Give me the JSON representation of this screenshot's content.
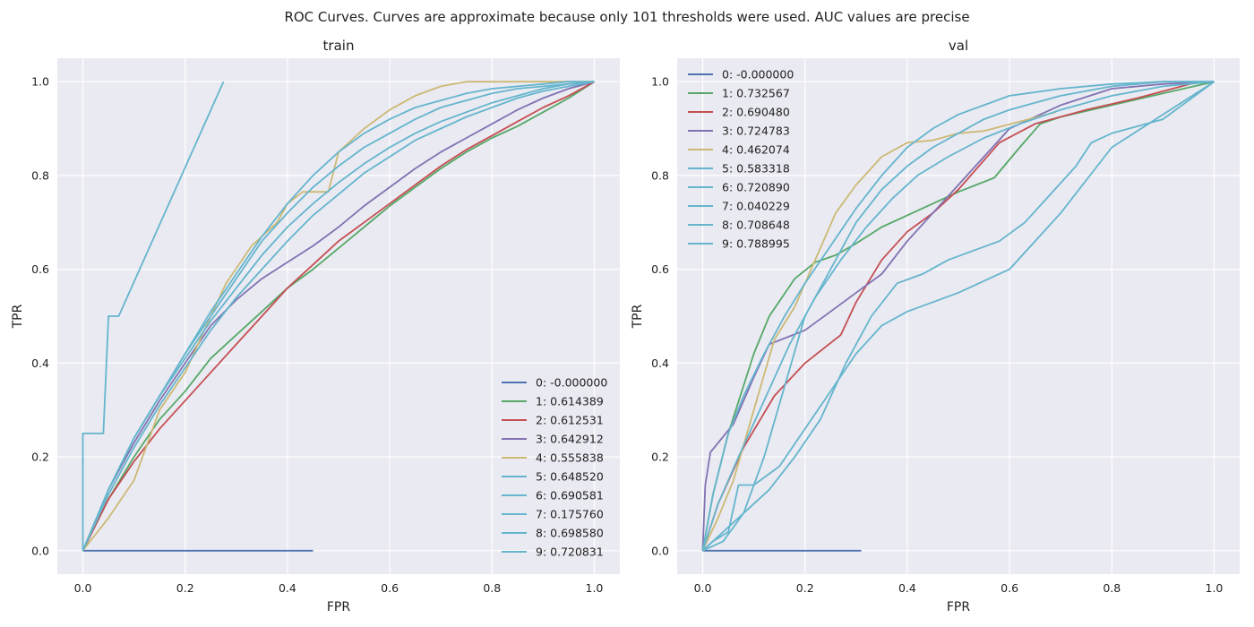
{
  "figure_title": "ROC Curves. Curves are approximate because only 101 thresholds were used. AUC values are precise",
  "chart_data": [
    {
      "type": "line",
      "title": "train",
      "xlabel": "FPR",
      "ylabel": "TPR",
      "xlim": [
        -0.05,
        1.05
      ],
      "ylim": [
        -0.05,
        1.05
      ],
      "xticks": [
        "0.0",
        "0.2",
        "0.4",
        "0.6",
        "0.8",
        "1.0"
      ],
      "yticks": [
        "0.0",
        "0.2",
        "0.4",
        "0.6",
        "0.8",
        "1.0"
      ],
      "grid": true,
      "legend_position": "lower-right",
      "series": [
        {
          "name": "0: -0.000000",
          "color": "#4c72b0",
          "x": [
            0,
            0.45
          ],
          "y": [
            0,
            0
          ]
        },
        {
          "name": "1: 0.614389",
          "color": "#55a868",
          "x": [
            0,
            0.05,
            0.1,
            0.15,
            0.2,
            0.25,
            0.3,
            0.35,
            0.4,
            0.45,
            0.5,
            0.55,
            0.6,
            0.65,
            0.7,
            0.75,
            0.8,
            0.85,
            0.9,
            0.95,
            1.0
          ],
          "y": [
            0,
            0.11,
            0.2,
            0.28,
            0.34,
            0.41,
            0.46,
            0.51,
            0.56,
            0.6,
            0.645,
            0.69,
            0.735,
            0.775,
            0.815,
            0.85,
            0.88,
            0.905,
            0.935,
            0.965,
            1.0
          ]
        },
        {
          "name": "2: 0.612531",
          "color": "#c44e52",
          "x": [
            0,
            0.05,
            0.1,
            0.15,
            0.2,
            0.25,
            0.3,
            0.35,
            0.4,
            0.45,
            0.5,
            0.55,
            0.6,
            0.65,
            0.7,
            0.75,
            0.8,
            0.85,
            0.9,
            0.95,
            1.0
          ],
          "y": [
            0,
            0.11,
            0.19,
            0.26,
            0.32,
            0.38,
            0.44,
            0.5,
            0.56,
            0.61,
            0.66,
            0.7,
            0.74,
            0.78,
            0.82,
            0.855,
            0.885,
            0.915,
            0.945,
            0.97,
            1.0
          ]
        },
        {
          "name": "3: 0.642912",
          "color": "#8172b2",
          "x": [
            0,
            0.05,
            0.1,
            0.15,
            0.2,
            0.25,
            0.3,
            0.35,
            0.4,
            0.45,
            0.5,
            0.55,
            0.6,
            0.65,
            0.7,
            0.75,
            0.8,
            0.85,
            0.9,
            0.95,
            1.0
          ],
          "y": [
            0,
            0.13,
            0.23,
            0.32,
            0.4,
            0.48,
            0.535,
            0.58,
            0.615,
            0.65,
            0.69,
            0.735,
            0.775,
            0.815,
            0.85,
            0.88,
            0.91,
            0.94,
            0.965,
            0.985,
            1.0
          ]
        },
        {
          "name": "4: 0.555838",
          "color": "#ccb974",
          "x": [
            0,
            0.05,
            0.1,
            0.15,
            0.2,
            0.25,
            0.28,
            0.33,
            0.38,
            0.4,
            0.43,
            0.48,
            0.5,
            0.55,
            0.6,
            0.65,
            0.7,
            0.75,
            0.8,
            0.85,
            1.0
          ],
          "y": [
            0,
            0.07,
            0.15,
            0.3,
            0.38,
            0.5,
            0.57,
            0.65,
            0.7,
            0.74,
            0.765,
            0.765,
            0.85,
            0.9,
            0.94,
            0.97,
            0.99,
            1.0,
            1.0,
            1.0,
            1.0
          ]
        },
        {
          "name": "5: 0.648520",
          "color": "#64b5cd",
          "x": [
            0,
            0.05,
            0.1,
            0.15,
            0.2,
            0.25,
            0.3,
            0.35,
            0.4,
            0.45,
            0.5,
            0.55,
            0.6,
            0.65,
            0.7,
            0.75,
            0.8,
            0.85,
            0.9,
            0.95,
            1.0
          ],
          "y": [
            0,
            0.12,
            0.22,
            0.31,
            0.39,
            0.47,
            0.54,
            0.6,
            0.66,
            0.715,
            0.76,
            0.805,
            0.84,
            0.875,
            0.9,
            0.925,
            0.945,
            0.965,
            0.98,
            0.99,
            1.0
          ]
        },
        {
          "name": "6: 0.690581",
          "color": "#64b5cd",
          "x": [
            0,
            0.05,
            0.1,
            0.15,
            0.2,
            0.25,
            0.3,
            0.35,
            0.4,
            0.45,
            0.5,
            0.55,
            0.6,
            0.65,
            0.7,
            0.75,
            0.8,
            0.85,
            0.9,
            0.95,
            1.0
          ],
          "y": [
            0,
            0.13,
            0.24,
            0.33,
            0.41,
            0.49,
            0.56,
            0.63,
            0.69,
            0.74,
            0.785,
            0.825,
            0.86,
            0.89,
            0.915,
            0.935,
            0.955,
            0.97,
            0.985,
            0.995,
            1.0
          ]
        },
        {
          "name": "7: 0.175760",
          "color": "#64b5cd",
          "x": [
            0,
            0.0,
            0.04,
            0.05,
            0.07,
            0.275
          ],
          "y": [
            0,
            0.25,
            0.25,
            0.5,
            0.5,
            1.0
          ]
        },
        {
          "name": "8: 0.698580",
          "color": "#64b5cd",
          "x": [
            0,
            0.05,
            0.1,
            0.15,
            0.2,
            0.25,
            0.3,
            0.35,
            0.4,
            0.45,
            0.5,
            0.55,
            0.6,
            0.65,
            0.7,
            0.75,
            0.8,
            0.85,
            0.9,
            0.95,
            1.0
          ],
          "y": [
            0,
            0.13,
            0.24,
            0.33,
            0.42,
            0.5,
            0.58,
            0.66,
            0.72,
            0.775,
            0.82,
            0.86,
            0.89,
            0.92,
            0.945,
            0.96,
            0.975,
            0.985,
            0.99,
            0.995,
            1.0
          ]
        },
        {
          "name": "9: 0.720831",
          "color": "#64b5cd",
          "x": [
            0,
            0.05,
            0.1,
            0.15,
            0.2,
            0.25,
            0.3,
            0.35,
            0.4,
            0.45,
            0.5,
            0.55,
            0.6,
            0.65,
            0.7,
            0.75,
            0.8,
            0.85,
            0.9,
            0.95,
            1.0
          ],
          "y": [
            0,
            0.13,
            0.24,
            0.33,
            0.42,
            0.51,
            0.59,
            0.67,
            0.74,
            0.8,
            0.85,
            0.89,
            0.92,
            0.945,
            0.96,
            0.975,
            0.985,
            0.99,
            0.995,
            1.0,
            1.0
          ]
        }
      ]
    },
    {
      "type": "line",
      "title": "val",
      "xlabel": "FPR",
      "ylabel": "TPR",
      "xlim": [
        -0.05,
        1.05
      ],
      "ylim": [
        -0.05,
        1.05
      ],
      "xticks": [
        "0.0",
        "0.2",
        "0.4",
        "0.6",
        "0.8",
        "1.0"
      ],
      "yticks": [
        "0.0",
        "0.2",
        "0.4",
        "0.6",
        "0.8",
        "1.0"
      ],
      "grid": true,
      "legend_position": "upper-left",
      "series": [
        {
          "name": "0: -0.000000",
          "color": "#4c72b0",
          "x": [
            0,
            0.31
          ],
          "y": [
            0,
            0
          ]
        },
        {
          "name": "1: 0.732567",
          "color": "#55a868",
          "x": [
            0,
            0.02,
            0.05,
            0.1,
            0.13,
            0.18,
            0.22,
            0.26,
            0.3,
            0.35,
            0.4,
            0.45,
            0.5,
            0.57,
            0.62,
            0.66,
            0.7,
            0.8,
            0.9,
            1.0
          ],
          "y": [
            0,
            0.12,
            0.25,
            0.42,
            0.5,
            0.58,
            0.615,
            0.63,
            0.655,
            0.69,
            0.715,
            0.74,
            0.765,
            0.795,
            0.86,
            0.91,
            0.925,
            0.95,
            0.975,
            1.0
          ]
        },
        {
          "name": "2: 0.690480",
          "color": "#c44e52",
          "x": [
            0,
            0.03,
            0.08,
            0.14,
            0.2,
            0.27,
            0.3,
            0.35,
            0.4,
            0.45,
            0.5,
            0.58,
            0.65,
            0.75,
            0.85,
            0.97
          ],
          "y": [
            0,
            0.1,
            0.22,
            0.33,
            0.4,
            0.46,
            0.53,
            0.62,
            0.68,
            0.72,
            0.77,
            0.87,
            0.91,
            0.94,
            0.965,
            1.0
          ]
        },
        {
          "name": "3: 0.724783",
          "color": "#8172b2",
          "x": [
            0,
            0.005,
            0.015,
            0.03,
            0.06,
            0.1,
            0.13,
            0.2,
            0.25,
            0.3,
            0.35,
            0.4,
            0.45,
            0.5,
            0.55,
            0.6,
            0.7,
            0.8,
            0.9,
            1.0
          ],
          "y": [
            0,
            0.14,
            0.21,
            0.23,
            0.27,
            0.37,
            0.44,
            0.47,
            0.51,
            0.55,
            0.59,
            0.66,
            0.72,
            0.78,
            0.84,
            0.9,
            0.95,
            0.985,
            0.995,
            1.0
          ]
        },
        {
          "name": "4: 0.462074",
          "color": "#ccb974",
          "x": [
            0,
            0.03,
            0.06,
            0.1,
            0.14,
            0.18,
            0.22,
            0.26,
            0.3,
            0.35,
            0.4,
            0.45,
            0.5,
            0.55,
            0.62,
            0.69
          ],
          "y": [
            0,
            0.07,
            0.15,
            0.3,
            0.45,
            0.52,
            0.62,
            0.72,
            0.78,
            0.84,
            0.87,
            0.875,
            0.89,
            0.895,
            0.915,
            0.935
          ]
        },
        {
          "name": "5: 0.583318",
          "color": "#64b5cd",
          "x": [
            0,
            0.05,
            0.08,
            0.13,
            0.18,
            0.23,
            0.28,
            0.33,
            0.38,
            0.43,
            0.48,
            0.53,
            0.58,
            0.63,
            0.68,
            0.73,
            0.76,
            0.8,
            0.9,
            1.0
          ],
          "y": [
            0,
            0.05,
            0.08,
            0.13,
            0.2,
            0.28,
            0.4,
            0.5,
            0.57,
            0.59,
            0.62,
            0.64,
            0.66,
            0.7,
            0.76,
            0.82,
            0.87,
            0.89,
            0.92,
            1.0
          ]
        },
        {
          "name": "6: 0.720890",
          "color": "#64b5cd",
          "x": [
            0,
            0.03,
            0.07,
            0.12,
            0.17,
            0.22,
            0.27,
            0.32,
            0.37,
            0.42,
            0.48,
            0.55,
            0.62,
            0.7,
            0.8,
            0.9,
            1.0
          ],
          "y": [
            0,
            0.1,
            0.2,
            0.32,
            0.44,
            0.54,
            0.62,
            0.69,
            0.75,
            0.8,
            0.84,
            0.88,
            0.91,
            0.94,
            0.97,
            0.99,
            1.0
          ]
        },
        {
          "name": "7: 0.040229",
          "color": "#64b5cd",
          "x": [
            0,
            0.02,
            0.05,
            0.07,
            0.1,
            0.15,
            0.2,
            0.25,
            0.3,
            0.35,
            0.4,
            0.45,
            0.5,
            0.6,
            0.7,
            0.8,
            1.0
          ],
          "y": [
            0,
            0.02,
            0.04,
            0.14,
            0.14,
            0.18,
            0.26,
            0.34,
            0.42,
            0.48,
            0.51,
            0.53,
            0.55,
            0.6,
            0.72,
            0.86,
            1.0
          ]
        },
        {
          "name": "8: 0.708648",
          "color": "#64b5cd",
          "x": [
            0,
            0.04,
            0.08,
            0.12,
            0.16,
            0.2,
            0.25,
            0.3,
            0.35,
            0.4,
            0.45,
            0.5,
            0.55,
            0.6,
            0.7,
            0.8,
            0.9,
            1.0
          ],
          "y": [
            0,
            0.02,
            0.08,
            0.2,
            0.35,
            0.5,
            0.6,
            0.7,
            0.77,
            0.82,
            0.86,
            0.89,
            0.92,
            0.94,
            0.97,
            0.99,
            1.0,
            1.0
          ]
        },
        {
          "name": "9: 0.788995",
          "color": "#64b5cd",
          "x": [
            0,
            0.02,
            0.05,
            0.08,
            0.12,
            0.16,
            0.2,
            0.25,
            0.3,
            0.35,
            0.4,
            0.45,
            0.5,
            0.55,
            0.6,
            0.7,
            0.8,
            0.9,
            1.0
          ],
          "y": [
            0,
            0.12,
            0.25,
            0.33,
            0.42,
            0.5,
            0.57,
            0.65,
            0.73,
            0.8,
            0.86,
            0.9,
            0.93,
            0.95,
            0.97,
            0.985,
            0.995,
            1.0,
            1.0
          ]
        }
      ]
    }
  ]
}
